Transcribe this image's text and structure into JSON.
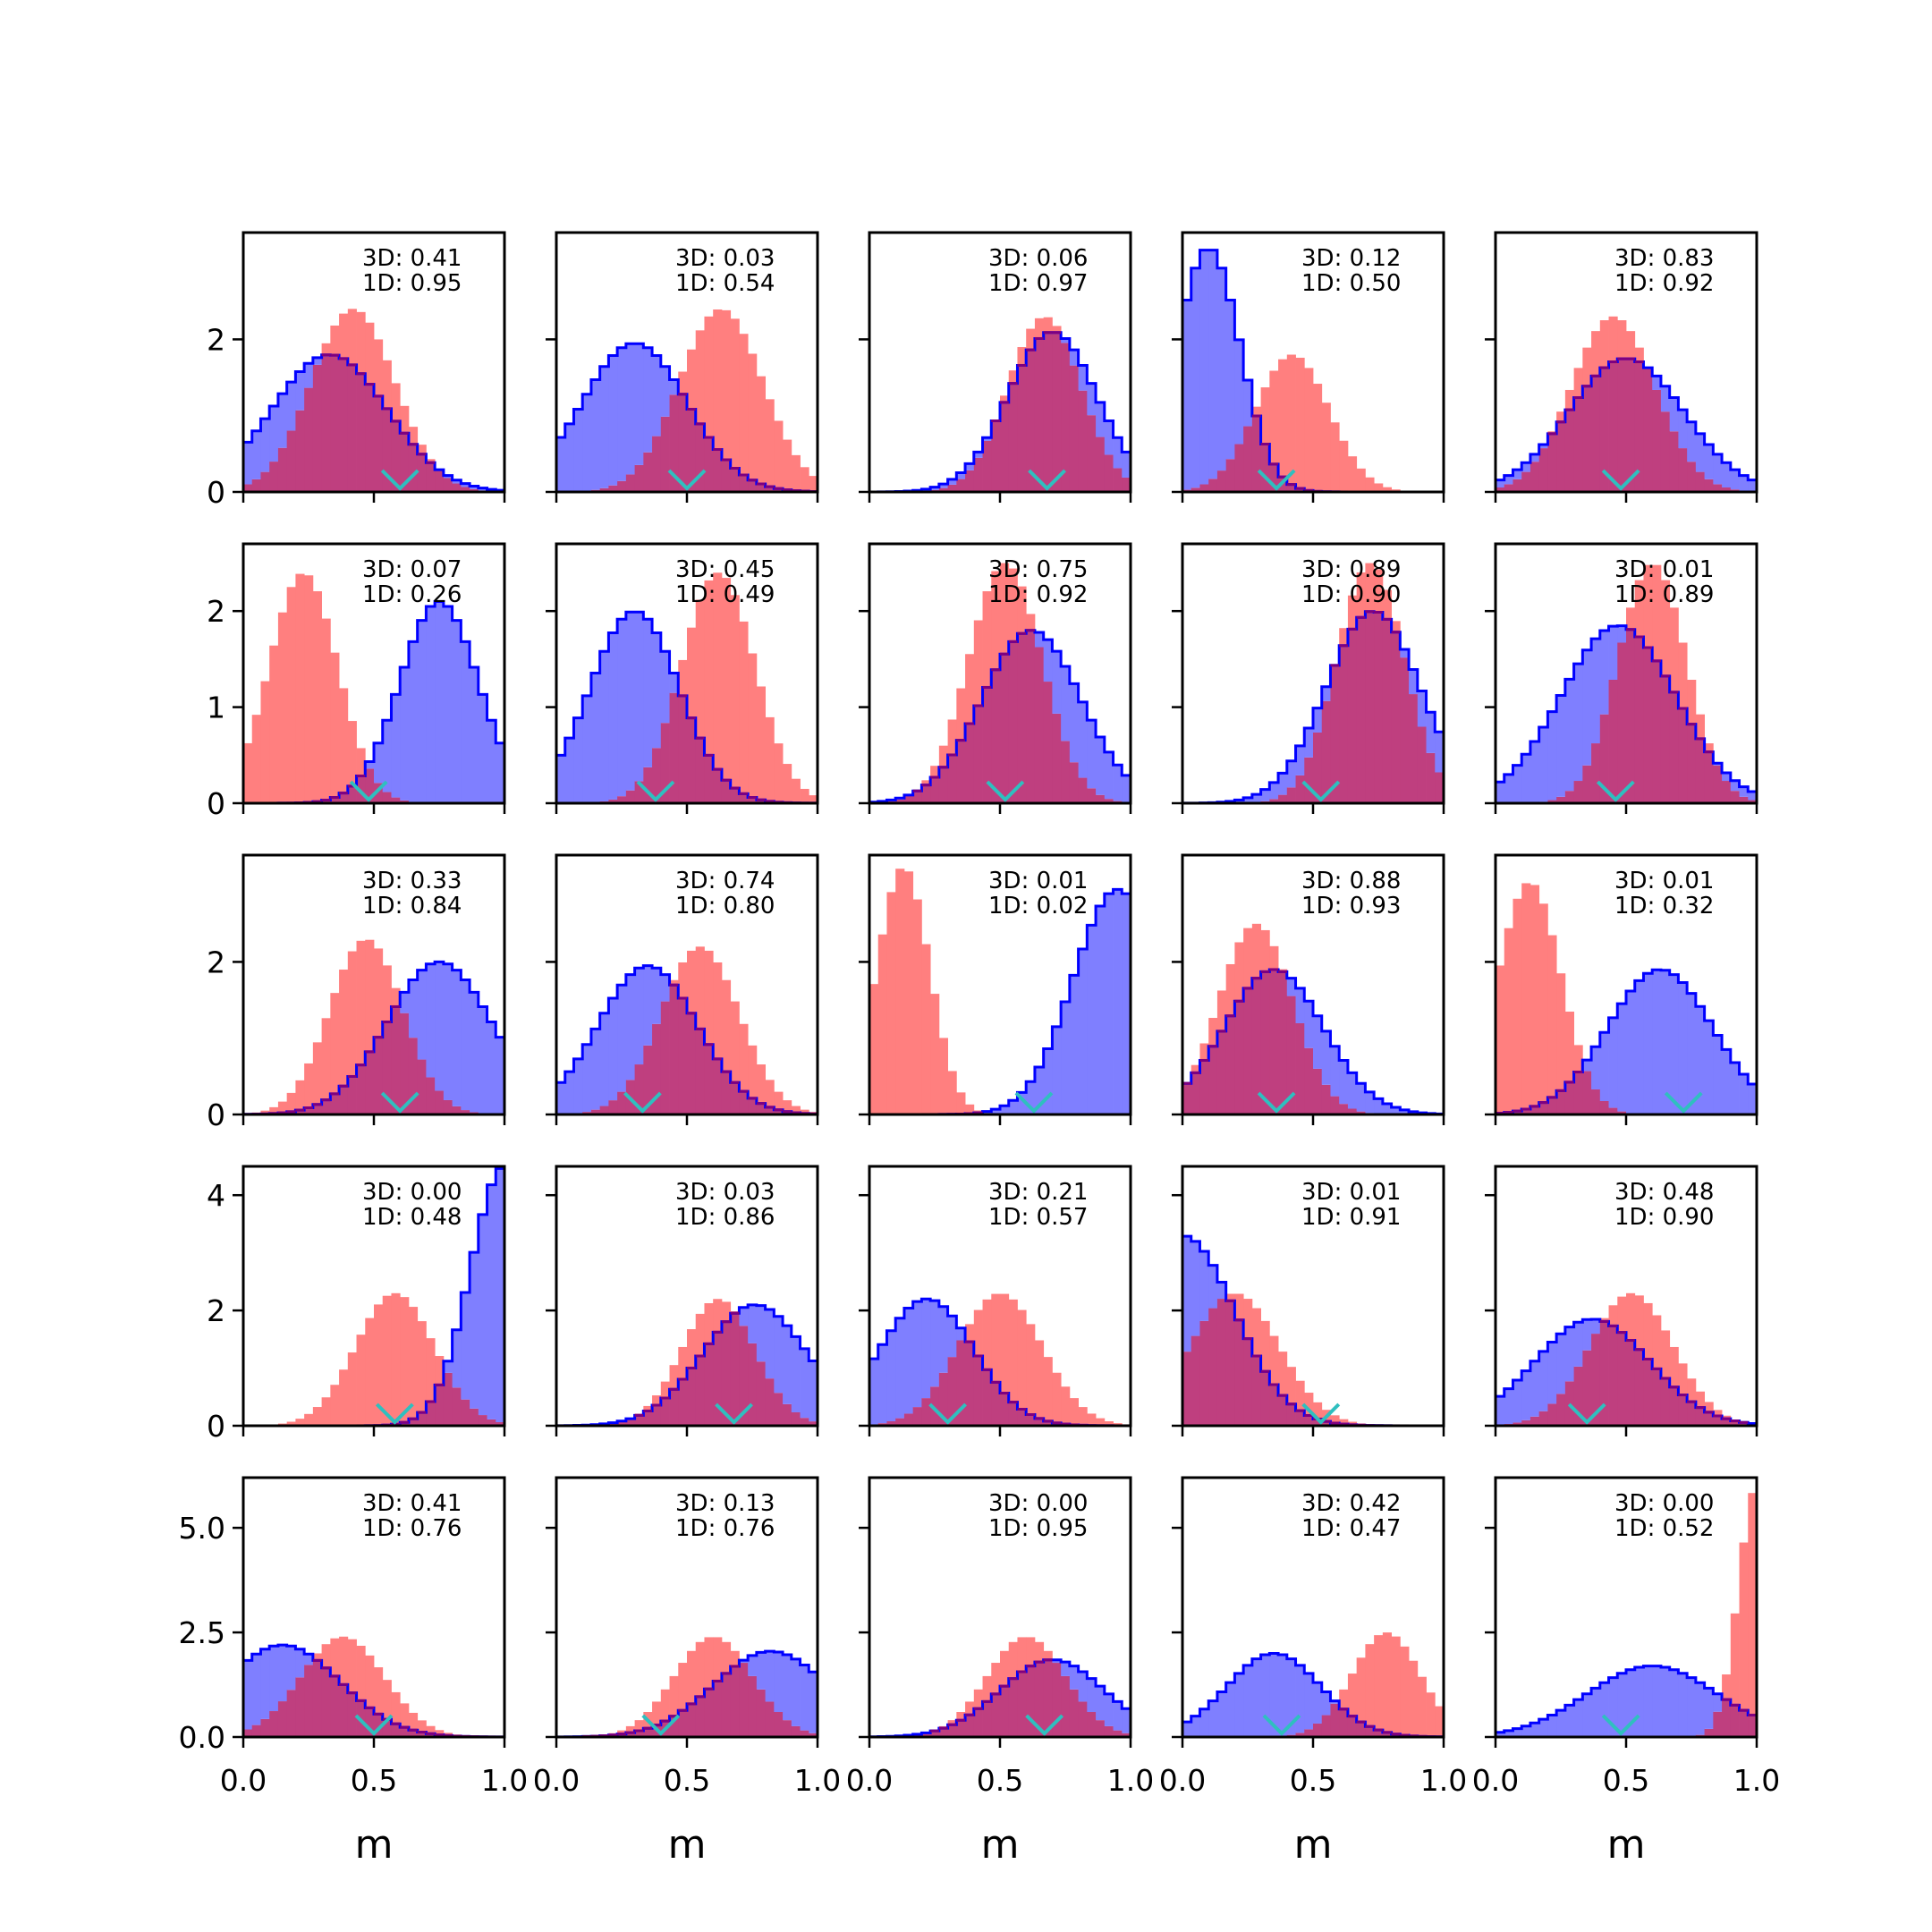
{
  "chart_data": {
    "type": "histogram-grid",
    "rows": 5,
    "cols": 5,
    "xlabel": "m",
    "xlim": [
      0,
      1
    ],
    "xticks": [
      0.0,
      0.5,
      1.0
    ],
    "xtick_labels": [
      "0.0",
      "0.5",
      "1.0"
    ],
    "row_ylim": [
      [
        0,
        3.4
      ],
      [
        0,
        2.7
      ],
      [
        0,
        3.4
      ],
      [
        0,
        4.5
      ],
      [
        0,
        6.2
      ]
    ],
    "row_yticks": [
      [
        0,
        2
      ],
      [
        0,
        1,
        2
      ],
      [
        0,
        2
      ],
      [
        0,
        2,
        4
      ],
      [
        0.0,
        2.5,
        5.0
      ]
    ],
    "row_ytick_labels": [
      [
        "0",
        "2"
      ],
      [
        "0",
        "1",
        "2"
      ],
      [
        "0",
        "2"
      ],
      [
        "0",
        "2",
        "4"
      ],
      [
        "0.0",
        "2.5",
        "5.0"
      ]
    ],
    "colors": {
      "red_fill": "#ff7f7f",
      "blue_fill": "#7f7fff",
      "blue_edge": "#0000ff",
      "overlap": "#bf3f7f",
      "overlap_edge": "#7f007f",
      "marker": "#2fbfbf"
    },
    "bins": 30,
    "panels": [
      {
        "ann": [
          "3D: 0.41",
          "1D: 0.95"
        ],
        "red": {
          "mu": 0.42,
          "sigma": 0.16,
          "peak": 2.4
        },
        "blue": {
          "mu": 0.33,
          "sigma": 0.22,
          "peak": 1.8
        },
        "marker": 0.6
      },
      {
        "ann": [
          "3D: 0.03",
          "1D: 0.54"
        ],
        "red": {
          "mu": 0.63,
          "sigma": 0.16,
          "peak": 2.4
        },
        "blue": {
          "mu": 0.3,
          "sigma": 0.2,
          "peak": 1.95
        },
        "marker": 0.5
      },
      {
        "ann": [
          "3D: 0.06",
          "1D: 0.97"
        ],
        "red": {
          "mu": 0.67,
          "sigma": 0.14,
          "peak": 2.3
        },
        "blue": {
          "mu": 0.7,
          "sigma": 0.17,
          "peak": 2.1
        },
        "marker": 0.68
      },
      {
        "ann": [
          "3D: 0.12",
          "1D: 0.50"
        ],
        "red": {
          "mu": 0.42,
          "sigma": 0.14,
          "peak": 1.8
        },
        "blue": {
          "mu": 0.1,
          "sigma": 0.12,
          "peak": 3.2
        },
        "marker": 0.36
      },
      {
        "ann": [
          "3D: 0.83",
          "1D: 0.92"
        ],
        "red": {
          "mu": 0.45,
          "sigma": 0.16,
          "peak": 2.3
        },
        "blue": {
          "mu": 0.5,
          "sigma": 0.22,
          "peak": 1.75
        },
        "marker": 0.48
      },
      {
        "ann": [
          "3D: 0.07",
          "1D: 0.26"
        ],
        "red": {
          "mu": 0.23,
          "sigma": 0.13,
          "peak": 2.4
        },
        "blue": {
          "mu": 0.75,
          "sigma": 0.15,
          "peak": 2.1
        },
        "marker": 0.48
      },
      {
        "ann": [
          "3D: 0.45",
          "1D: 0.49"
        ],
        "red": {
          "mu": 0.62,
          "sigma": 0.14,
          "peak": 2.4
        },
        "blue": {
          "mu": 0.3,
          "sigma": 0.17,
          "peak": 2.0
        },
        "marker": 0.38
      },
      {
        "ann": [
          "3D: 0.75",
          "1D: 0.92"
        ],
        "red": {
          "mu": 0.52,
          "sigma": 0.14,
          "peak": 2.5
        },
        "blue": {
          "mu": 0.62,
          "sigma": 0.19,
          "peak": 1.8
        },
        "marker": 0.52
      },
      {
        "ann": [
          "3D: 0.89",
          "1D: 0.90"
        ],
        "red": {
          "mu": 0.72,
          "sigma": 0.13,
          "peak": 2.5
        },
        "blue": {
          "mu": 0.73,
          "sigma": 0.18,
          "peak": 2.0
        },
        "marker": 0.53
      },
      {
        "ann": [
          "3D: 0.01",
          "1D: 0.89"
        ],
        "red": {
          "mu": 0.6,
          "sigma": 0.13,
          "peak": 2.5
        },
        "blue": {
          "mu": 0.47,
          "sigma": 0.22,
          "peak": 1.85
        },
        "marker": 0.46
      },
      {
        "ann": [
          "3D: 0.33",
          "1D: 0.84"
        ],
        "red": {
          "mu": 0.47,
          "sigma": 0.14,
          "peak": 2.3
        },
        "blue": {
          "mu": 0.75,
          "sigma": 0.2,
          "peak": 2.0
        },
        "marker": 0.6
      },
      {
        "ann": [
          "3D: 0.74",
          "1D: 0.80"
        ],
        "red": {
          "mu": 0.55,
          "sigma": 0.15,
          "peak": 2.2
        },
        "blue": {
          "mu": 0.35,
          "sigma": 0.19,
          "peak": 1.95
        },
        "marker": 0.33
      },
      {
        "ann": [
          "3D: 0.01",
          "1D: 0.02"
        ],
        "red": {
          "mu": 0.13,
          "sigma": 0.1,
          "peak": 3.25
        },
        "blue": {
          "mu": 0.95,
          "sigma": 0.17,
          "peak": 2.95
        },
        "marker": 0.63
      },
      {
        "ann": [
          "3D: 0.88",
          "1D: 0.93"
        ],
        "red": {
          "mu": 0.28,
          "sigma": 0.14,
          "peak": 2.5
        },
        "blue": {
          "mu": 0.35,
          "sigma": 0.19,
          "peak": 1.9
        },
        "marker": 0.36
      },
      {
        "ann": [
          "3D: 0.01",
          "1D: 0.32"
        ],
        "red": {
          "mu": 0.13,
          "sigma": 0.12,
          "peak": 3.05
        },
        "blue": {
          "mu": 0.63,
          "sigma": 0.2,
          "peak": 1.9
        },
        "marker": 0.72
      },
      {
        "ann": [
          "3D: 0.00",
          "1D: 0.48"
        ],
        "red": {
          "mu": 0.58,
          "sigma": 0.15,
          "peak": 2.3
        },
        "blue": {
          "mu": 1.0,
          "sigma": 0.13,
          "peak": 4.5
        },
        "marker": 0.58
      },
      {
        "ann": [
          "3D: 0.03",
          "1D: 0.86"
        ],
        "red": {
          "mu": 0.62,
          "sigma": 0.14,
          "peak": 2.2
        },
        "blue": {
          "mu": 0.76,
          "sigma": 0.2,
          "peak": 2.1
        },
        "marker": 0.68
      },
      {
        "ann": [
          "3D: 0.21",
          "1D: 0.57"
        ],
        "red": {
          "mu": 0.5,
          "sigma": 0.16,
          "peak": 2.3
        },
        "blue": {
          "mu": 0.22,
          "sigma": 0.18,
          "peak": 2.2
        },
        "marker": 0.3
      },
      {
        "ann": [
          "3D: 0.01",
          "1D: 0.91"
        ],
        "red": {
          "mu": 0.2,
          "sigma": 0.17,
          "peak": 2.3
        },
        "blue": {
          "mu": 0.0,
          "sigma": 0.2,
          "peak": 3.3
        },
        "marker": 0.53
      },
      {
        "ann": [
          "3D: 0.48",
          "1D: 0.90"
        ],
        "red": {
          "mu": 0.52,
          "sigma": 0.16,
          "peak": 2.3
        },
        "blue": {
          "mu": 0.37,
          "sigma": 0.22,
          "peak": 1.85
        },
        "marker": 0.35
      },
      {
        "ann": [
          "3D: 0.41",
          "1D: 0.76"
        ],
        "red": {
          "mu": 0.38,
          "sigma": 0.16,
          "peak": 2.4
        },
        "blue": {
          "mu": 0.15,
          "sigma": 0.22,
          "peak": 2.2
        },
        "marker": 0.5
      },
      {
        "ann": [
          "3D: 0.13",
          "1D: 0.76"
        ],
        "red": {
          "mu": 0.6,
          "sigma": 0.15,
          "peak": 2.4
        },
        "blue": {
          "mu": 0.82,
          "sigma": 0.22,
          "peak": 2.05
        },
        "marker": 0.4
      },
      {
        "ann": [
          "3D: 0.00",
          "1D: 0.95"
        ],
        "red": {
          "mu": 0.6,
          "sigma": 0.15,
          "peak": 2.4
        },
        "blue": {
          "mu": 0.7,
          "sigma": 0.2,
          "peak": 1.85
        },
        "marker": 0.67
      },
      {
        "ann": [
          "3D: 0.42",
          "1D: 0.47"
        ],
        "red": {
          "mu": 0.78,
          "sigma": 0.13,
          "peak": 2.5
        },
        "blue": {
          "mu": 0.35,
          "sigma": 0.18,
          "peak": 2.0
        },
        "marker": 0.38
      },
      {
        "ann": [
          "3D: 0.00",
          "1D: 0.52"
        ],
        "red": {
          "mu": 1.0,
          "sigma": 0.07,
          "peak": 6.0
        },
        "blue": {
          "mu": 0.6,
          "sigma": 0.25,
          "peak": 1.7
        },
        "marker": 0.48
      }
    ]
  }
}
